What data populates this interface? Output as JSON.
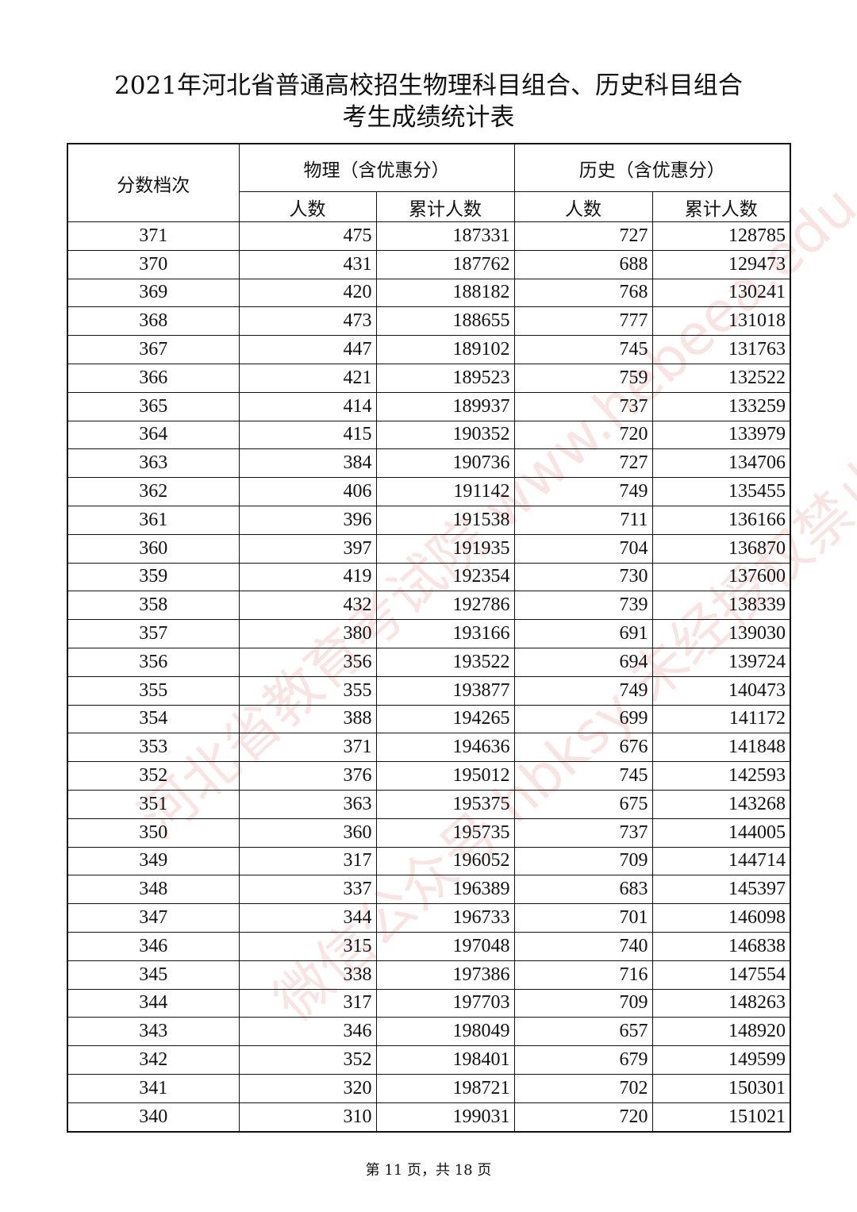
{
  "title_line1": "2021年河北省普通高校招生物理科目组合、历史科目组合",
  "title_line2": "考生成绩统计表",
  "headers": {
    "score": "分数档次",
    "physics": "物理（含优惠分）",
    "history": "历史（含优惠分）",
    "count": "人数",
    "cumulative": "累计人数"
  },
  "rows": [
    [
      "371",
      "475",
      "187331",
      "727",
      "128785"
    ],
    [
      "370",
      "431",
      "187762",
      "688",
      "129473"
    ],
    [
      "369",
      "420",
      "188182",
      "768",
      "130241"
    ],
    [
      "368",
      "473",
      "188655",
      "777",
      "131018"
    ],
    [
      "367",
      "447",
      "189102",
      "745",
      "131763"
    ],
    [
      "366",
      "421",
      "189523",
      "759",
      "132522"
    ],
    [
      "365",
      "414",
      "189937",
      "737",
      "133259"
    ],
    [
      "364",
      "415",
      "190352",
      "720",
      "133979"
    ],
    [
      "363",
      "384",
      "190736",
      "727",
      "134706"
    ],
    [
      "362",
      "406",
      "191142",
      "749",
      "135455"
    ],
    [
      "361",
      "396",
      "191538",
      "711",
      "136166"
    ],
    [
      "360",
      "397",
      "191935",
      "704",
      "136870"
    ],
    [
      "359",
      "419",
      "192354",
      "730",
      "137600"
    ],
    [
      "358",
      "432",
      "192786",
      "739",
      "138339"
    ],
    [
      "357",
      "380",
      "193166",
      "691",
      "139030"
    ],
    [
      "356",
      "356",
      "193522",
      "694",
      "139724"
    ],
    [
      "355",
      "355",
      "193877",
      "749",
      "140473"
    ],
    [
      "354",
      "388",
      "194265",
      "699",
      "141172"
    ],
    [
      "353",
      "371",
      "194636",
      "676",
      "141848"
    ],
    [
      "352",
      "376",
      "195012",
      "745",
      "142593"
    ],
    [
      "351",
      "363",
      "195375",
      "675",
      "143268"
    ],
    [
      "350",
      "360",
      "195735",
      "737",
      "144005"
    ],
    [
      "349",
      "317",
      "196052",
      "709",
      "144714"
    ],
    [
      "348",
      "337",
      "196389",
      "683",
      "145397"
    ],
    [
      "347",
      "344",
      "196733",
      "701",
      "146098"
    ],
    [
      "346",
      "315",
      "197048",
      "740",
      "146838"
    ],
    [
      "345",
      "338",
      "197386",
      "716",
      "147554"
    ],
    [
      "344",
      "317",
      "197703",
      "709",
      "148263"
    ],
    [
      "343",
      "346",
      "198049",
      "657",
      "148920"
    ],
    [
      "342",
      "352",
      "198401",
      "679",
      "149599"
    ],
    [
      "341",
      "320",
      "198721",
      "702",
      "150301"
    ],
    [
      "340",
      "310",
      "199031",
      "720",
      "151021"
    ]
  ],
  "footer": "第 11 页，共 18 页",
  "watermark": {
    "line1": "河北省教育考试院 www.hebeea.edu.cn",
    "line2": "微信公众号 hbksy 未经授权禁止转载及使用",
    "color": "#dc5a5a"
  }
}
